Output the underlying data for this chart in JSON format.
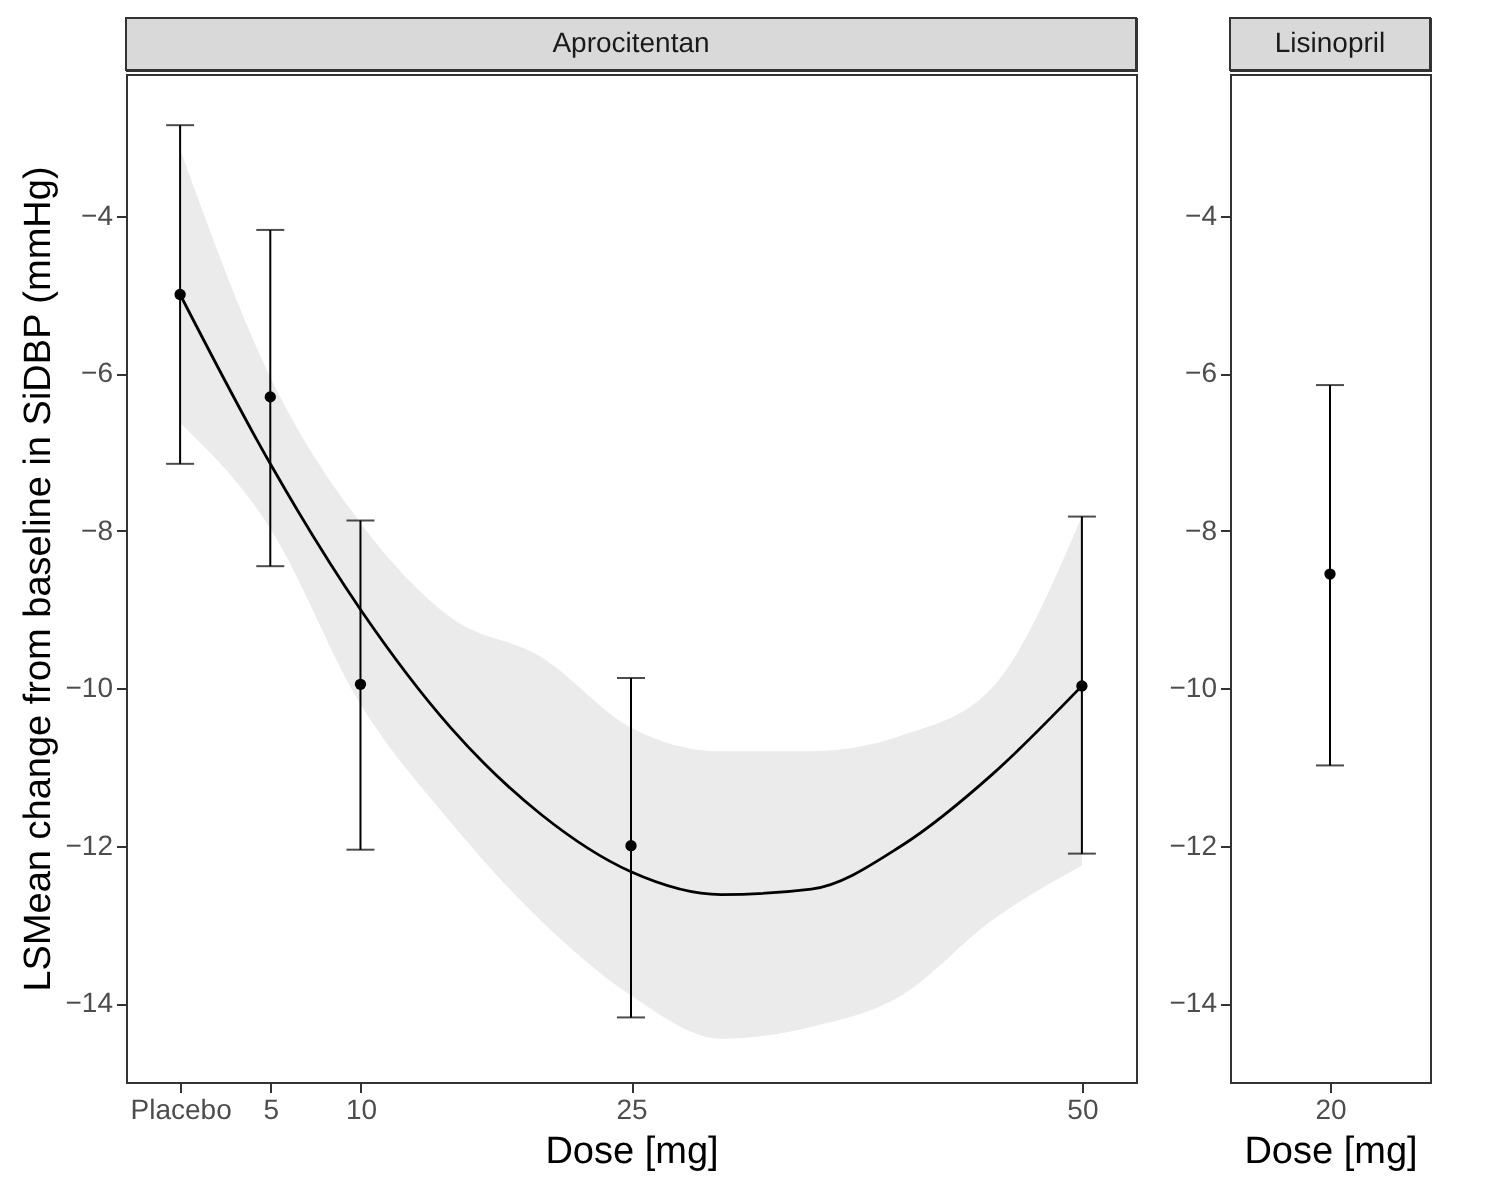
{
  "chart_data": [
    {
      "type": "scatter",
      "title": "Aprocitentan",
      "xlabel": "Dose [mg]",
      "ylabel": "LSMean change from baseline in SiDBP (mmHg)",
      "xlim": [
        -3,
        53
      ],
      "xticks": [
        {
          "value": 0,
          "label": "Placebo"
        },
        5,
        10,
        25,
        50
      ],
      "ylim": [
        -15,
        -2.2
      ],
      "yticks": [
        -14,
        -12,
        -10,
        -8,
        -6,
        -4
      ],
      "series": [
        {
          "type": "line",
          "color": "#000000",
          "x": [
            0,
            5,
            10,
            15,
            20,
            25,
            30,
            35,
            40,
            45,
            50
          ],
          "values": [
            -5.0,
            -7.15,
            -9.0,
            -10.5,
            -11.6,
            -12.33,
            -12.62,
            -12.55,
            -12.0,
            -11.1,
            -9.97
          ],
          "lower": [
            -6.63,
            -7.97,
            -10.2,
            -11.7,
            -12.95,
            -13.9,
            -14.45,
            -14.3,
            -13.9,
            -12.95,
            -12.25
          ],
          "upper": [
            -3.16,
            -6.05,
            -7.9,
            -9.1,
            -9.6,
            -10.5,
            -10.8,
            -10.8,
            -10.6,
            -10.0,
            -7.82
          ]
        },
        {
          "color": "#000000",
          "x": [
            0,
            5,
            10,
            25,
            50
          ],
          "values": [
            -5.0,
            -6.3,
            -9.95,
            -12.0,
            -9.97
          ],
          "errors": [
            [
              -7.15,
              -2.85
            ],
            [
              -8.45,
              -4.18
            ],
            [
              -12.05,
              -7.87
            ],
            [
              -14.18,
              -9.87
            ],
            [
              -12.1,
              -7.82
            ]
          ]
        }
      ]
    },
    {
      "type": "scatter",
      "title": "Lisinopril",
      "xlabel": "Dose [mg]",
      "categories": [
        "20"
      ],
      "ylim": [
        -15,
        -2.2
      ],
      "yticks": [
        -14,
        -12,
        -10,
        -8,
        -6,
        -4
      ],
      "series": [
        {
          "color": "#000000",
          "values": [
            -8.55
          ],
          "errors": [
            [
              -10.98,
              -6.15
            ]
          ]
        }
      ]
    }
  ]
}
